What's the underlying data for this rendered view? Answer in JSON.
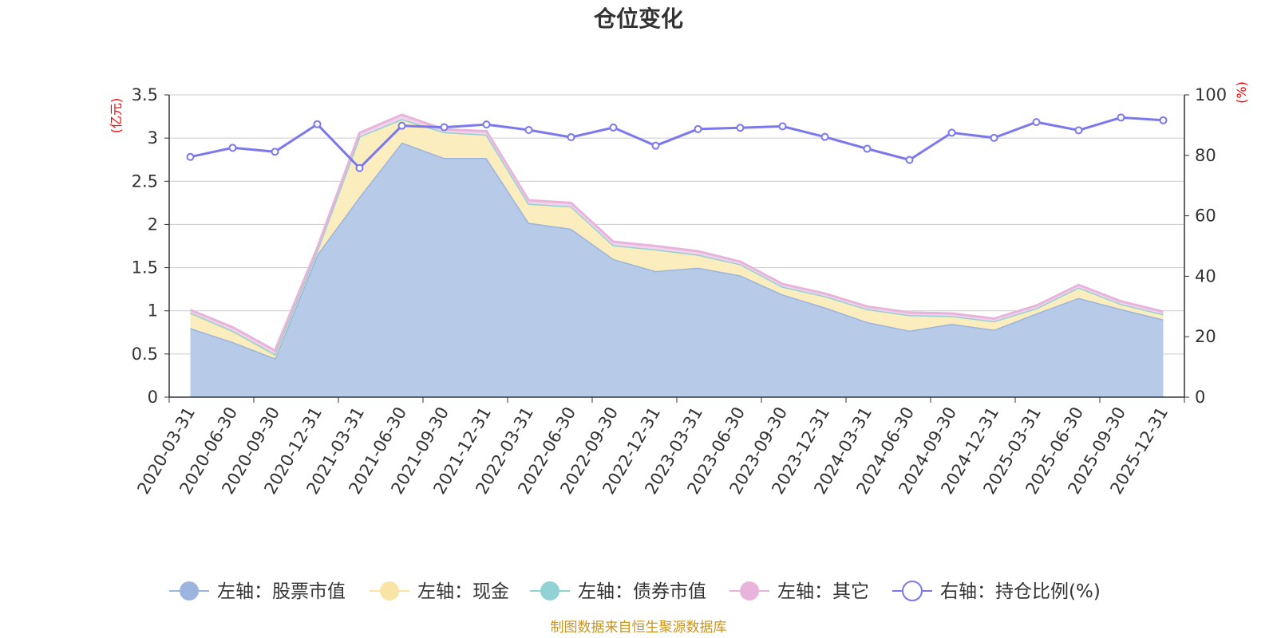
{
  "chart_data": {
    "type": "area",
    "title": "仓位变化",
    "left_axis_unit": "(亿元)",
    "right_axis_unit": "(%)",
    "left_ylim": [
      0,
      3.5
    ],
    "left_ticks": [
      "0",
      "0.5",
      "1",
      "1.5",
      "2",
      "2.5",
      "3",
      "3.5"
    ],
    "right_ylim": [
      0,
      100
    ],
    "right_ticks": [
      "0",
      "20",
      "40",
      "60",
      "80",
      "100"
    ],
    "categories": [
      "2020-03-31",
      "2020-06-30",
      "2020-09-30",
      "2020-12-31",
      "2021-03-31",
      "2021-06-30",
      "2021-09-30",
      "2021-12-31",
      "2022-03-31",
      "2022-06-30",
      "2022-09-30",
      "2022-12-31",
      "2023-03-31",
      "2023-06-30",
      "2023-09-30",
      "2023-12-31",
      "2024-03-31",
      "2024-06-30",
      "2024-09-30",
      "2024-12-31",
      "2025-03-31",
      "2025-06-30",
      "2025-09-30",
      "2025-12-31"
    ],
    "series": [
      {
        "name": "左轴：股票市值",
        "axis": "left",
        "kind": "stacked-area",
        "color": "#9bb5de",
        "fill": "#b7cbe8",
        "values": [
          0.8,
          0.64,
          0.45,
          1.65,
          2.32,
          2.95,
          2.77,
          2.77,
          2.02,
          1.95,
          1.6,
          1.46,
          1.5,
          1.41,
          1.19,
          1.04,
          0.87,
          0.77,
          0.85,
          0.78,
          0.97,
          1.15,
          1.02,
          0.9
        ]
      },
      {
        "name": "左轴：现金",
        "axis": "left",
        "kind": "stacked-area",
        "color": "#f9e4a6",
        "fill": "#fbedbe",
        "values": [
          0.17,
          0.12,
          0.03,
          0.05,
          0.7,
          0.27,
          0.3,
          0.27,
          0.22,
          0.26,
          0.16,
          0.25,
          0.15,
          0.13,
          0.09,
          0.13,
          0.15,
          0.18,
          0.09,
          0.1,
          0.06,
          0.12,
          0.06,
          0.06
        ]
      },
      {
        "name": "左轴：债券市值",
        "axis": "left",
        "kind": "stacked-area",
        "color": "#93d2d4",
        "fill": "#bfe6e6",
        "values": [
          0.01,
          0.01,
          0.02,
          0,
          0,
          0,
          0,
          0,
          0,
          0,
          0,
          0,
          0,
          0,
          0,
          0,
          0,
          0,
          0,
          0,
          0,
          0,
          0,
          0
        ]
      },
      {
        "name": "左轴：其它",
        "axis": "left",
        "kind": "stacked-area",
        "color": "#e8b4dc",
        "fill": "#f2d3eb",
        "values": [
          0.03,
          0.04,
          0.04,
          0.03,
          0.04,
          0.05,
          0.03,
          0.04,
          0.04,
          0.04,
          0.04,
          0.04,
          0.04,
          0.03,
          0.03,
          0.03,
          0.03,
          0.03,
          0.03,
          0.03,
          0.03,
          0.03,
          0.03,
          0.03
        ]
      },
      {
        "name": "右轴：持仓比例(%)",
        "axis": "right",
        "kind": "line",
        "color": "#7b78ee",
        "values": [
          79.5,
          82.5,
          81.2,
          90.3,
          75.8,
          89.8,
          89.3,
          90.2,
          88.4,
          86.0,
          89.2,
          83.2,
          88.7,
          89.1,
          89.6,
          86.1,
          82.2,
          78.5,
          87.5,
          85.8,
          91.0,
          88.3,
          92.5,
          91.6
        ]
      }
    ],
    "legend_position": "bottom",
    "grid": true
  },
  "footer": {
    "source": "制图数据来自恒生聚源数据库"
  }
}
